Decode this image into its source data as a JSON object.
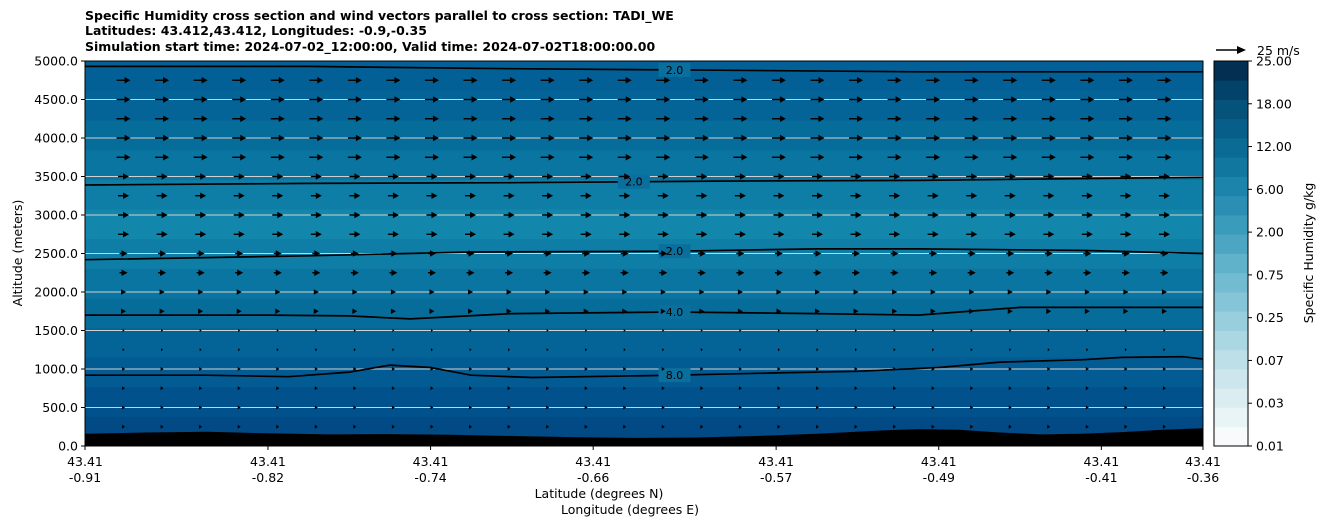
{
  "chart_data": {
    "type": "heatmap",
    "title_lines": [
      "Specific Humidity cross section and wind vectors parallel to cross section: TADI_WE",
      "Latitudes: 43.412,43.412, Longitudes: -0.9,-0.35",
      "Simulation start time: 2024-07-02_12:00:00, Valid time: 2024-07-02T18:00:00.00"
    ],
    "ylabel": "Altitude (meters)",
    "xlabel_lines": [
      "Latitude (degrees N)",
      "Longitude (degrees E)"
    ],
    "ylim": [
      0,
      5000
    ],
    "y_ticks": [
      "0.0",
      "500.0",
      "1000.0",
      "1500.0",
      "2000.0",
      "2500.0",
      "3000.0",
      "3500.0",
      "4000.0",
      "4500.0",
      "5000.0"
    ],
    "x_ticks": [
      {
        "lat": "43.41",
        "lon": "-0.91"
      },
      {
        "lat": "43.41",
        "lon": "-0.82"
      },
      {
        "lat": "43.41",
        "lon": "-0.74"
      },
      {
        "lat": "43.41",
        "lon": "-0.66"
      },
      {
        "lat": "43.41",
        "lon": "-0.57"
      },
      {
        "lat": "43.41",
        "lon": "-0.49"
      },
      {
        "lat": "43.41",
        "lon": "-0.41"
      },
      {
        "lat": "43.41",
        "lon": "-0.36"
      }
    ],
    "lon_range": [
      -0.91,
      -0.36
    ],
    "grid": "horizontal",
    "colorbar": {
      "label": "Specific Humidity g/kg",
      "tick_labels": [
        "0.01",
        "0.03",
        "0.07",
        "0.25",
        "0.75",
        "2.00",
        "6.00",
        "12.00",
        "18.00",
        "25.00"
      ],
      "level_count": 20,
      "colors": [
        "#f7fbfc",
        "#e9f4f7",
        "#dcedf2",
        "#cde6ed",
        "#bcdfe8",
        "#aad7e2",
        "#98cedd",
        "#86c5d7",
        "#73bbd1",
        "#60b1ca",
        "#4ca6c3",
        "#3a9bbb",
        "#2a8fb3",
        "#1c83aa",
        "#12779f",
        "#0b6b94",
        "#075e88",
        "#05527b",
        "#03436a",
        "#022f52"
      ]
    },
    "quiver_key": "25 m/s",
    "terrain_m": [
      [
        -0.91,
        160
      ],
      [
        -0.88,
        175
      ],
      [
        -0.85,
        185
      ],
      [
        -0.82,
        165
      ],
      [
        -0.79,
        150
      ],
      [
        -0.76,
        155
      ],
      [
        -0.73,
        145
      ],
      [
        -0.7,
        130
      ],
      [
        -0.67,
        115
      ],
      [
        -0.64,
        105
      ],
      [
        -0.61,
        110
      ],
      [
        -0.58,
        130
      ],
      [
        -0.55,
        160
      ],
      [
        -0.52,
        200
      ],
      [
        -0.5,
        220
      ],
      [
        -0.48,
        210
      ],
      [
        -0.46,
        175
      ],
      [
        -0.44,
        150
      ],
      [
        -0.42,
        160
      ],
      [
        -0.4,
        180
      ],
      [
        -0.38,
        210
      ],
      [
        -0.36,
        230
      ]
    ],
    "contours": [
      {
        "label": "2.0",
        "label_lon": -0.62,
        "points": [
          [
            -0.91,
            4930
          ],
          [
            -0.8,
            4930
          ],
          [
            -0.7,
            4900
          ],
          [
            -0.6,
            4880
          ],
          [
            -0.5,
            4860
          ],
          [
            -0.36,
            4860
          ]
        ]
      },
      {
        "label": "2.0",
        "label_lon": -0.64,
        "points": [
          [
            -0.91,
            3390
          ],
          [
            -0.8,
            3410
          ],
          [
            -0.7,
            3420
          ],
          [
            -0.6,
            3440
          ],
          [
            -0.5,
            3450
          ],
          [
            -0.36,
            3490
          ]
        ]
      },
      {
        "label": "2.0",
        "label_lon": -0.62,
        "points": [
          [
            -0.91,
            2420
          ],
          [
            -0.8,
            2470
          ],
          [
            -0.72,
            2520
          ],
          [
            -0.62,
            2530
          ],
          [
            -0.55,
            2560
          ],
          [
            -0.5,
            2560
          ],
          [
            -0.42,
            2540
          ],
          [
            -0.36,
            2500
          ]
        ]
      },
      {
        "label": "4.0",
        "label_lon": -0.62,
        "points": [
          [
            -0.91,
            1700
          ],
          [
            -0.82,
            1700
          ],
          [
            -0.78,
            1690
          ],
          [
            -0.75,
            1650
          ],
          [
            -0.7,
            1720
          ],
          [
            -0.62,
            1740
          ],
          [
            -0.55,
            1720
          ],
          [
            -0.5,
            1700
          ],
          [
            -0.48,
            1740
          ],
          [
            -0.45,
            1800
          ],
          [
            -0.42,
            1800
          ],
          [
            -0.36,
            1800
          ]
        ]
      },
      {
        "label": "8.0",
        "label_lon": -0.62,
        "points": [
          [
            -0.91,
            920
          ],
          [
            -0.85,
            920
          ],
          [
            -0.81,
            900
          ],
          [
            -0.78,
            960
          ],
          [
            -0.76,
            1050
          ],
          [
            -0.74,
            1020
          ],
          [
            -0.72,
            920
          ],
          [
            -0.69,
            890
          ],
          [
            -0.62,
            920
          ],
          [
            -0.57,
            950
          ],
          [
            -0.53,
            970
          ],
          [
            -0.49,
            1020
          ],
          [
            -0.46,
            1090
          ],
          [
            -0.42,
            1120
          ],
          [
            -0.4,
            1150
          ],
          [
            -0.37,
            1160
          ],
          [
            -0.36,
            1130
          ]
        ]
      }
    ]
  }
}
